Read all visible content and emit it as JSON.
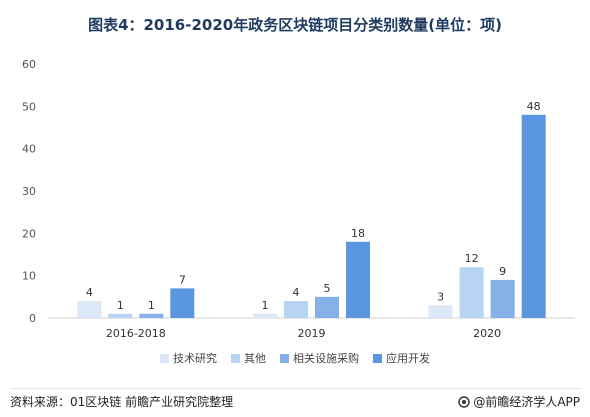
{
  "chart_data": {
    "type": "bar",
    "title": "图表4：2016-2020年政务区块链项目分类别数量(单位：项)",
    "categories": [
      "2016-2018",
      "2019",
      "2020"
    ],
    "series": [
      {
        "name": "技术研究",
        "values": [
          4,
          1,
          3
        ],
        "color": "#dce8f8"
      },
      {
        "name": "其他",
        "values": [
          1,
          4,
          12
        ],
        "color": "#b8d4f4"
      },
      {
        "name": "相关设施采购",
        "values": [
          1,
          5,
          9
        ],
        "color": "#86b1e6"
      },
      {
        "name": "应用开发",
        "values": [
          7,
          18,
          48
        ],
        "color": "#5b96e0"
      }
    ],
    "ylim": [
      0,
      60
    ],
    "yticks": [
      0,
      10,
      20,
      30,
      40,
      50,
      60
    ],
    "xlabel": "",
    "ylabel": "",
    "legend_position": "bottom",
    "grid": false
  },
  "footer": {
    "source": "资料来源：01区块链 前瞻产业研究院整理",
    "brand": "@前瞻经济学人APP"
  }
}
